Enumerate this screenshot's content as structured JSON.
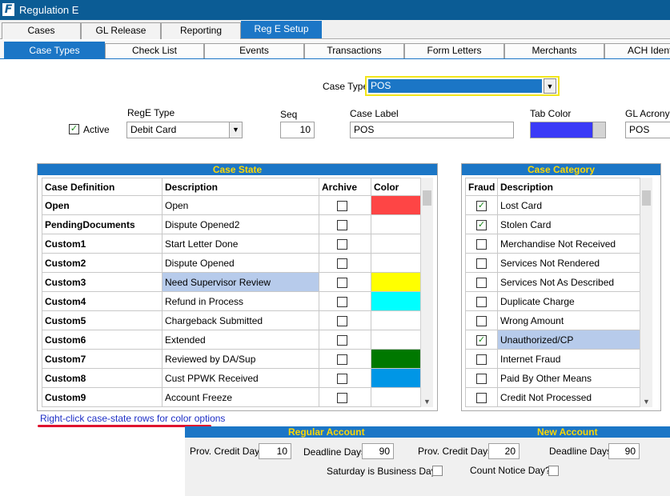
{
  "window": {
    "title": "Regulation E"
  },
  "tabs_top": [
    {
      "label": "Cases"
    },
    {
      "label": "GL Release"
    },
    {
      "label": "Reporting"
    },
    {
      "label": "Reg E Setup",
      "active": true
    }
  ],
  "tabs_sub": [
    {
      "label": "Case Types",
      "active": true
    },
    {
      "label": "Check List"
    },
    {
      "label": "Events"
    },
    {
      "label": "Transactions"
    },
    {
      "label": "Form Letters"
    },
    {
      "label": "Merchants"
    },
    {
      "label": "ACH Identi"
    }
  ],
  "case_type": {
    "label": "Case Type",
    "value": "POS"
  },
  "form": {
    "active_label": "Active",
    "active_checked": true,
    "rege_type_label": "RegE Type",
    "rege_type_value": "Debit Card",
    "seq_label": "Seq",
    "seq_value": "10",
    "case_label_label": "Case Label",
    "case_label_value": "POS",
    "tab_color_label": "Tab Color",
    "tab_color": "#3a3af7",
    "gl_acronym_label": "GL Acronym",
    "gl_acronym_value": "POS"
  },
  "case_state": {
    "title": "Case State",
    "headers": [
      "Case Definition",
      "Description",
      "Archive",
      "Color"
    ],
    "rows": [
      {
        "definition": "Open",
        "description": "Open",
        "archive": false,
        "color": "#fe4545"
      },
      {
        "definition": "PendingDocuments",
        "description": "Dispute Opened2",
        "archive": false,
        "color": "#ffffff"
      },
      {
        "definition": "Custom1",
        "description": "Start Letter Done",
        "archive": false,
        "color": "#ffffff"
      },
      {
        "definition": "Custom2",
        "description": "Dispute Opened",
        "archive": false,
        "color": "#ffffff"
      },
      {
        "definition": "Custom3",
        "description": "Need Supervisor Review",
        "archive": false,
        "color": "#ffff00",
        "selected": true
      },
      {
        "definition": "Custom4",
        "description": "Refund in Process",
        "archive": false,
        "color": "#00ffff"
      },
      {
        "definition": "Custom5",
        "description": "Chargeback Submitted",
        "archive": false,
        "color": "#ffffff"
      },
      {
        "definition": "Custom6",
        "description": "Extended",
        "archive": false,
        "color": "#ffffff"
      },
      {
        "definition": "Custom7",
        "description": "Reviewed by DA/Sup",
        "archive": false,
        "color": "#007800"
      },
      {
        "definition": "Custom8",
        "description": "Cust PPWK Received",
        "archive": false,
        "color": "#0096e6"
      },
      {
        "definition": "Custom9",
        "description": "Account Freeze",
        "archive": false,
        "color": "#ffffff"
      }
    ]
  },
  "case_category": {
    "title": "Case Category",
    "headers": [
      "Fraud",
      "Description"
    ],
    "rows": [
      {
        "fraud": true,
        "description": "Lost Card"
      },
      {
        "fraud": true,
        "description": "Stolen Card"
      },
      {
        "fraud": false,
        "description": "Merchandise Not Received"
      },
      {
        "fraud": false,
        "description": "Services Not Rendered"
      },
      {
        "fraud": false,
        "description": "Services Not As Described"
      },
      {
        "fraud": false,
        "description": "Duplicate Charge"
      },
      {
        "fraud": false,
        "description": "Wrong Amount"
      },
      {
        "fraud": true,
        "description": "Unauthorized/CP",
        "selected": true
      },
      {
        "fraud": false,
        "description": "Internet Fraud"
      },
      {
        "fraud": false,
        "description": "Paid By Other Means"
      },
      {
        "fraud": false,
        "description": "Credit Not Processed"
      }
    ]
  },
  "hint": "Right-click case-state rows for color options",
  "accounts": {
    "regular_title": "Regular Account",
    "new_title": "New Account",
    "regular_prov_label": "Prov. Credit Days",
    "regular_prov_value": "10",
    "regular_deadline_label": "Deadline Days",
    "regular_deadline_value": "90",
    "new_prov_label": "Prov. Credit Days",
    "new_prov_value": "20",
    "new_deadline_label": "Deadline Days",
    "new_deadline_value": "90",
    "saturday_label": "Saturday is Business Day?",
    "saturday_checked": false,
    "count_notice_label": "Count Notice Day?",
    "count_notice_checked": false
  }
}
